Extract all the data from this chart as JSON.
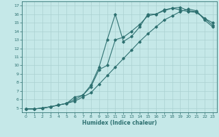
{
  "xlabel": "Humidex (Indice chaleur)",
  "bg_color": "#c5e8e8",
  "grid_color": "#aad0d0",
  "line_color": "#2d7070",
  "xlim": [
    -0.5,
    23.5
  ],
  "ylim": [
    4.5,
    17.5
  ],
  "xticks": [
    0,
    1,
    2,
    3,
    4,
    5,
    6,
    7,
    8,
    9,
    10,
    11,
    12,
    13,
    14,
    15,
    16,
    17,
    18,
    19,
    20,
    21,
    22,
    23
  ],
  "yticks": [
    5,
    6,
    7,
    8,
    9,
    10,
    11,
    12,
    13,
    14,
    15,
    16,
    17
  ],
  "line1_x": [
    0,
    1,
    2,
    3,
    4,
    5,
    6,
    7,
    8,
    9,
    10,
    11,
    12,
    13,
    14,
    15,
    16,
    17,
    18,
    19,
    20,
    21,
    22,
    23
  ],
  "line1_y": [
    4.9,
    4.9,
    5.0,
    5.15,
    5.35,
    5.55,
    6.3,
    6.5,
    7.7,
    9.8,
    13.0,
    16.0,
    12.8,
    13.4,
    14.5,
    16.0,
    16.0,
    16.5,
    16.7,
    16.5,
    16.3,
    16.2,
    15.5,
    14.7
  ],
  "line2_x": [
    0,
    1,
    2,
    3,
    4,
    5,
    6,
    7,
    8,
    9,
    10,
    11,
    12,
    13,
    14,
    15,
    16,
    17,
    18,
    19,
    20,
    21,
    22,
    23
  ],
  "line2_y": [
    4.9,
    4.9,
    5.0,
    5.15,
    5.35,
    5.55,
    6.0,
    6.5,
    7.5,
    9.5,
    10.0,
    13.0,
    13.3,
    14.0,
    14.8,
    15.8,
    16.0,
    16.4,
    16.7,
    16.8,
    16.4,
    16.3,
    15.5,
    15.0
  ],
  "line3_x": [
    0,
    1,
    2,
    3,
    4,
    5,
    6,
    7,
    8,
    9,
    10,
    11,
    12,
    13,
    14,
    15,
    16,
    17,
    18,
    19,
    20,
    21,
    22,
    23
  ],
  "line3_y": [
    4.9,
    4.9,
    5.0,
    5.15,
    5.35,
    5.55,
    5.8,
    6.3,
    6.8,
    7.8,
    8.8,
    9.8,
    10.8,
    11.8,
    12.8,
    13.7,
    14.5,
    15.3,
    15.8,
    16.3,
    16.6,
    16.4,
    15.3,
    14.5
  ]
}
